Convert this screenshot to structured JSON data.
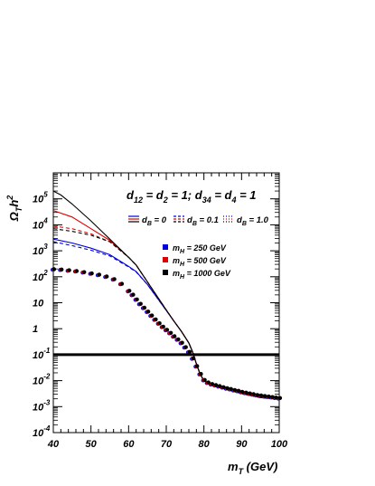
{
  "chart_data": {
    "type": "line",
    "title": "",
    "xlabel_main": "m",
    "xlabel_sub": "T",
    "xlabel_unit": " (GeV)",
    "ylabel_main": "Ω",
    "ylabel_sub": "T",
    "ylabel_h": "h",
    "ylabel_sup": "2",
    "xlim": [
      40,
      100
    ],
    "ylim_log10": [
      -4,
      6
    ],
    "log_y": true,
    "grid": false,
    "x_ticks": [
      "40",
      "50",
      "60",
      "70",
      "80",
      "90",
      "100"
    ],
    "y_ticks": [
      {
        "base": "10",
        "exp": "-4"
      },
      {
        "base": "10",
        "exp": "-3"
      },
      {
        "base": "10",
        "exp": "-2"
      },
      {
        "base": "10",
        "exp": "-1"
      },
      {
        "base": "1",
        "exp": ""
      },
      {
        "base": "10",
        "exp": ""
      },
      {
        "base": "10",
        "exp": "2"
      },
      {
        "base": "10",
        "exp": "3"
      },
      {
        "base": "10",
        "exp": "4"
      },
      {
        "base": "10",
        "exp": "5"
      }
    ],
    "annotation": {
      "d12": "d",
      "d12_sub": "12",
      "eq1": " = d",
      "d2_sub": "2",
      "eq2": " = 1; d",
      "d34_sub": "34",
      "eq3": " = d",
      "d4_sub": "4",
      "eq4": " = 1"
    },
    "linestyle_legend": [
      {
        "label_main": "d",
        "label_sub": "B",
        "label_tail": " = 0",
        "style": "solid"
      },
      {
        "label_main": "d",
        "label_sub": "B",
        "label_tail": " = 0.1",
        "style": "dashed"
      },
      {
        "label_main": "d",
        "label_sub": "B",
        "label_tail": " = 1.0",
        "style": "dotted"
      }
    ],
    "color_legend": [
      {
        "label_main": "m",
        "label_sub": "H",
        "label_tail": " = 250 GeV",
        "color": "#0000dd"
      },
      {
        "label_main": "m",
        "label_sub": "H",
        "label_tail": " = 500 GeV",
        "color": "#dd0000"
      },
      {
        "label_main": "m",
        "label_sub": "H",
        "label_tail": " = 1000 GeV",
        "color": "#000000"
      }
    ],
    "reference_line": {
      "y_log10": -1
    },
    "series": [
      {
        "color": "#0000dd",
        "style": "solid",
        "x": [
          40,
          45,
          50,
          55,
          60,
          62,
          65,
          68,
          70,
          72,
          74,
          76,
          77,
          78,
          79,
          80,
          82,
          85,
          90,
          95,
          100
        ],
        "log10_y": [
          3.45,
          3.3,
          3.1,
          2.85,
          2.4,
          2.2,
          1.7,
          1.1,
          0.7,
          0.3,
          -0.1,
          -0.55,
          -0.9,
          -1.35,
          -1.75,
          -2.0,
          -2.15,
          -2.3,
          -2.45,
          -2.6,
          -2.65
        ]
      },
      {
        "color": "#0000dd",
        "style": "dashed",
        "x": [
          40,
          45,
          50,
          55,
          60,
          62,
          65,
          68,
          70,
          72,
          74,
          76,
          77,
          78,
          79,
          80,
          82,
          85,
          90,
          95,
          100
        ],
        "log10_y": [
          3.35,
          3.2,
          3.02,
          2.8,
          2.38,
          2.18,
          1.7,
          1.1,
          0.7,
          0.3,
          -0.1,
          -0.55,
          -0.9,
          -1.35,
          -1.75,
          -2.0,
          -2.15,
          -2.3,
          -2.45,
          -2.6,
          -2.65
        ]
      },
      {
        "color": "#dd0000",
        "style": "solid",
        "x": [
          40,
          45,
          50,
          55,
          60,
          62,
          65,
          68,
          70,
          72,
          74,
          76,
          77,
          78,
          79,
          80,
          82,
          85,
          90,
          95,
          100
        ],
        "log10_y": [
          4.55,
          4.3,
          3.85,
          3.4,
          2.75,
          2.45,
          1.8,
          1.15,
          0.72,
          0.3,
          -0.1,
          -0.55,
          -0.9,
          -1.35,
          -1.75,
          -2.0,
          -2.15,
          -2.3,
          -2.5,
          -2.65,
          -2.7
        ]
      },
      {
        "color": "#dd0000",
        "style": "dashed",
        "x": [
          40,
          45,
          50,
          55,
          60,
          62,
          65,
          68,
          70,
          72,
          74,
          76,
          77,
          78,
          79,
          80,
          82,
          85,
          90,
          95,
          100
        ],
        "log10_y": [
          3.95,
          3.85,
          3.65,
          3.35,
          2.75,
          2.45,
          1.8,
          1.15,
          0.72,
          0.3,
          -0.1,
          -0.55,
          -0.9,
          -1.35,
          -1.75,
          -2.0,
          -2.15,
          -2.3,
          -2.5,
          -2.65,
          -2.7
        ]
      },
      {
        "color": "#000000",
        "style": "solid",
        "x": [
          40,
          42,
          45,
          50,
          55,
          60,
          62,
          65,
          68,
          70,
          72,
          74,
          76,
          77,
          78,
          79,
          80,
          82,
          85,
          90,
          95,
          100
        ],
        "log10_y": [
          5.3,
          5.15,
          4.8,
          4.15,
          3.45,
          2.75,
          2.45,
          1.8,
          1.15,
          0.72,
          0.3,
          -0.1,
          -0.55,
          -0.9,
          -1.35,
          -1.75,
          -2.0,
          -2.15,
          -2.3,
          -2.5,
          -2.65,
          -2.72
        ]
      },
      {
        "color": "#000000",
        "style": "dashed",
        "x": [
          40,
          45,
          50,
          55,
          60,
          62,
          65,
          68,
          70,
          72,
          74,
          76,
          77,
          78,
          79,
          80,
          82,
          85,
          90,
          95,
          100
        ],
        "log10_y": [
          3.85,
          3.75,
          3.6,
          3.35,
          2.75,
          2.45,
          1.8,
          1.15,
          0.72,
          0.3,
          -0.1,
          -0.55,
          -0.9,
          -1.35,
          -1.75,
          -2.0,
          -2.15,
          -2.3,
          -2.5,
          -2.65,
          -2.72
        ]
      }
    ],
    "dotted_series": {
      "colors": [
        "#0000dd",
        "#dd0000",
        "#000000"
      ],
      "x": [
        40,
        42,
        44,
        46,
        48,
        50,
        52,
        54,
        56,
        58,
        60,
        61,
        62,
        63,
        64,
        65,
        66,
        67,
        68,
        69,
        70,
        71,
        72,
        73,
        74,
        75,
        76,
        77,
        78,
        79,
        80,
        81,
        82,
        83,
        84,
        85,
        86,
        87,
        88,
        89,
        90,
        91,
        92,
        93,
        94,
        95,
        96,
        97,
        98,
        99,
        100
      ],
      "log10_y": [
        2.28,
        2.27,
        2.24,
        2.21,
        2.17,
        2.12,
        2.07,
        2.0,
        1.9,
        1.72,
        1.45,
        1.3,
        1.12,
        0.95,
        0.8,
        0.65,
        0.5,
        0.35,
        0.2,
        0.07,
        -0.05,
        -0.17,
        -0.3,
        -0.42,
        -0.55,
        -0.72,
        -0.9,
        -1.15,
        -1.45,
        -1.75,
        -1.98,
        -2.08,
        -2.14,
        -2.18,
        -2.22,
        -2.26,
        -2.3,
        -2.33,
        -2.37,
        -2.4,
        -2.44,
        -2.47,
        -2.5,
        -2.53,
        -2.56,
        -2.58,
        -2.6,
        -2.62,
        -2.64,
        -2.66,
        -2.68
      ]
    }
  }
}
